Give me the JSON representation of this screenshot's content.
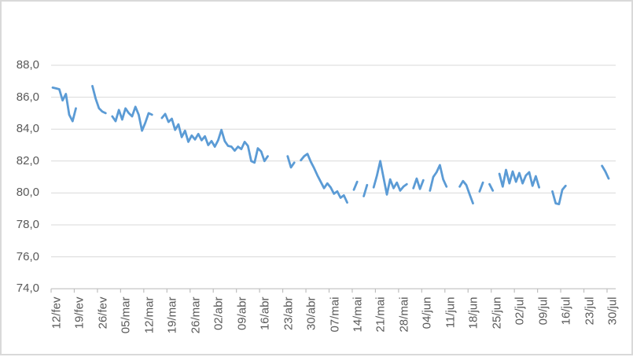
{
  "chart_data": {
    "type": "line",
    "title": "",
    "legend": "none",
    "gridlines": "horizontal",
    "x_axis": {
      "frequency": "daily",
      "tick_interval": "weekly",
      "points_per_tick": 7,
      "tick_labels": [
        "12/fev",
        "19/fev",
        "26/fev",
        "05/mar",
        "12/mar",
        "19/mar",
        "26/mar",
        "02/abr",
        "09/abr",
        "16/abr",
        "23/abr",
        "30/abr",
        "07/mai",
        "14/mai",
        "21/mai",
        "28/mai",
        "04/jun",
        "11/jun",
        "18/jun",
        "25/jun",
        "02/jul",
        "09/jul",
        "16/jul",
        "23/jul",
        "30/jul"
      ]
    },
    "y_axis": {
      "tick_labels": [
        "88,0",
        "86,0",
        "84,0",
        "82,0",
        "80,0",
        "78,0",
        "76,0",
        "74,0"
      ],
      "min": 74,
      "max": 88,
      "step": 2,
      "decimal_format": "comma"
    },
    "line_breaks_on_null": true,
    "series": [
      {
        "name": "series-1",
        "color": "#5B9BD5",
        "values": [
          86.6,
          86.55,
          86.5,
          85.8,
          86.2,
          84.9,
          84.5,
          85.3,
          null,
          null,
          null,
          null,
          86.7,
          85.9,
          85.3,
          85.1,
          85.0,
          null,
          84.8,
          84.5,
          85.2,
          84.6,
          85.3,
          85.0,
          84.8,
          85.4,
          84.9,
          83.9,
          84.4,
          85.0,
          84.9,
          null,
          null,
          84.7,
          84.95,
          84.45,
          84.65,
          83.95,
          84.3,
          83.5,
          83.9,
          83.2,
          83.6,
          83.35,
          83.7,
          83.3,
          83.55,
          83.0,
          83.25,
          82.9,
          83.3,
          83.95,
          83.25,
          82.95,
          82.9,
          82.65,
          82.9,
          82.75,
          83.2,
          82.95,
          82.0,
          81.9,
          82.8,
          82.6,
          82.0,
          82.3,
          null,
          null,
          null,
          null,
          null,
          82.3,
          81.6,
          81.9,
          null,
          82.05,
          82.3,
          82.45,
          81.95,
          81.55,
          81.1,
          80.7,
          80.3,
          80.6,
          80.35,
          79.95,
          80.1,
          79.7,
          79.85,
          79.4,
          null,
          80.2,
          80.7,
          null,
          79.8,
          80.5,
          null,
          80.35,
          81.1,
          82.0,
          80.95,
          79.9,
          80.85,
          80.3,
          80.65,
          80.15,
          80.4,
          80.55,
          null,
          80.3,
          80.9,
          80.25,
          80.8,
          null,
          80.15,
          81.0,
          81.3,
          81.75,
          80.85,
          80.4,
          null,
          null,
          null,
          80.4,
          80.75,
          80.5,
          79.9,
          79.35,
          null,
          80.1,
          80.65,
          null,
          80.55,
          80.15,
          null,
          81.2,
          80.4,
          81.45,
          80.6,
          81.35,
          80.7,
          81.25,
          80.6,
          81.1,
          81.3,
          80.45,
          81.05,
          80.35,
          null,
          null,
          null,
          80.1,
          79.35,
          79.3,
          80.2,
          80.45,
          null,
          null,
          null,
          null,
          null,
          null,
          null,
          null,
          null,
          null,
          81.7,
          81.35,
          80.9
        ]
      }
    ]
  },
  "colors": {
    "background": "#ffffff",
    "border": "#d9d9d9",
    "gridline": "#d9d9d9",
    "axis": "#bfbfbf",
    "tick": "#bfbfbf",
    "label_text": "#595959",
    "line": "#5B9BD5"
  }
}
